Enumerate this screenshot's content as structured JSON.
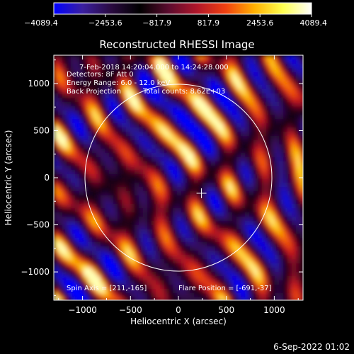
{
  "chart_data": {
    "type": "heatmap",
    "title": "Reconstructed RHESSI Image",
    "xlabel": "Heliocentric X (arcsec)",
    "ylabel": "Heliocentric Y (arcsec)",
    "xlim": [
      -1300,
      1300
    ],
    "ylim": [
      -1300,
      1300
    ],
    "x_ticks": [
      -1000,
      -500,
      0,
      500,
      1000
    ],
    "y_ticks": [
      -1000,
      -500,
      0,
      500,
      1000
    ],
    "colorbar": {
      "min": -4089.4,
      "max": 4089.4,
      "tick_values": [
        -4089.4,
        -2453.6,
        -817.9,
        817.9,
        2453.6,
        4089.4
      ],
      "tick_labels": [
        "−4089.4",
        "−2453.6",
        "−817.9",
        "817.9",
        "2453.6",
        "4089.4"
      ],
      "colors": [
        "#0000ff",
        "#3a1fa0",
        "#2a0a40",
        "#000000",
        "#5a0b2e",
        "#b0162a",
        "#f04010",
        "#ffb000",
        "#ffff50",
        "#ffffff"
      ]
    },
    "annotations": [
      "7-Feb-2018 14:20:04.000 to 14:24:28.000",
      "Detectors: 8F  Att 0",
      "Energy Range: 6.0 - 12.0 keV",
      "Back Projection",
      "Total counts: 8.62E+03"
    ],
    "footer": {
      "spin_axis": "Spin Axis = [211,-165]",
      "flare_position": "Flare Position = [-691,-37]"
    },
    "solar_limb_radius_arcsec": 975,
    "spin_axis_marker": [
      211,
      -165
    ],
    "flare_position": [
      -691,
      -37
    ]
  },
  "timestamp": "6-Sep-2022 01:02"
}
